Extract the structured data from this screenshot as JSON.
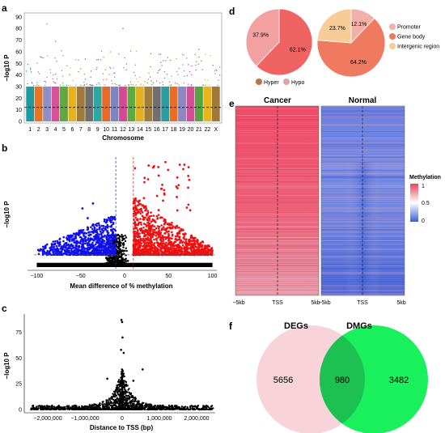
{
  "chart_data": [
    {
      "panel": "a",
      "type": "scatter",
      "subtype": "manhattan",
      "xlabel": "Chromosome",
      "ylabel": "−log10 P",
      "categories": [
        "1",
        "2",
        "3",
        "4",
        "5",
        "6",
        "7",
        "8",
        "9",
        "10",
        "11",
        "12",
        "13",
        "14",
        "15",
        "16",
        "17",
        "18",
        "19",
        "20",
        "21",
        "22",
        "X"
      ],
      "series_colors": [
        "#1f9ba0",
        "#e97424",
        "#8e8fc4",
        "#d6509a",
        "#61a845",
        "#e8b21a",
        "#a27a3c",
        "#6f6f6f",
        "#2ea6a1",
        "#e86a26",
        "#7f83be",
        "#d34a93",
        "#5caa41",
        "#e5b020",
        "#a37c38",
        "#707070",
        "#2a9da4",
        "#e96e24",
        "#8a87c2",
        "#d54c97",
        "#52a53f",
        "#e9b41e",
        "#9e793a"
      ],
      "ytick_labels": [
        "0",
        "10",
        "20",
        "30",
        "40",
        "50",
        "60",
        "70",
        "80",
        "90"
      ],
      "ylim": [
        0,
        92
      ],
      "threshold": 12
    },
    {
      "panel": "b",
      "type": "scatter",
      "subtype": "volcano",
      "xlabel": "Mean difference of % methylation",
      "ylabel": "−log10 P",
      "xtick_labels": [
        "−100",
        "−50",
        "0",
        "50",
        "100"
      ],
      "xticks": [
        -100,
        -50,
        0,
        50,
        100
      ],
      "xlim": [
        -105,
        105
      ],
      "threshold": 10,
      "vlines": [
        -10,
        10
      ],
      "series_colors": {
        "hypo": "#1010ee",
        "hyper": "#ee1010",
        "ns": "#000000"
      }
    },
    {
      "panel": "c",
      "type": "scatter",
      "xlabel": "Distance to TSS (bp)",
      "ylabel": "−log10 P",
      "xtick_labels": [
        "−2,000,000",
        "−1,000,000",
        "0",
        "1,000,000",
        "2,000,000"
      ],
      "xticks": [
        -2000000,
        -1000000,
        0,
        1000000,
        2000000
      ],
      "ytick_labels": [
        "0",
        "25",
        "50",
        "75"
      ],
      "yticks": [
        0,
        25,
        50,
        75
      ],
      "xlim": [
        -2500000,
        2500000
      ],
      "ylim": [
        -3,
        92
      ]
    },
    {
      "panel": "d",
      "type": "pie",
      "charts": [
        {
          "slices": [
            {
              "name": "Hyper",
              "value": 62.1,
              "label": "62.1%",
              "color": "#ef6363"
            },
            {
              "name": "Hypo",
              "value": 37.9,
              "label": "37.9%",
              "color": "#f2a0a0"
            }
          ],
          "legend": [
            "Hyper",
            "Hypo"
          ]
        },
        {
          "slices": [
            {
              "name": "Promoter",
              "value": 12.1,
              "label": "12.1%",
              "color": "#f3b0a8"
            },
            {
              "name": "Gene body",
              "value": 64.2,
              "label": "64.2%",
              "color": "#ef7a60"
            },
            {
              "name": "Intergenic region",
              "value": 23.7,
              "label": "23.7%",
              "color": "#f7cc96"
            }
          ],
          "legend": [
            "Promoter",
            "Gene body",
            "Intergenic region"
          ]
        }
      ]
    },
    {
      "panel": "e",
      "type": "heatmap",
      "columns": [
        "Cancer",
        "Normal"
      ],
      "xtick_labels": [
        "−5kb",
        "TSS",
        "5kb"
      ],
      "legend_title": "Methylation",
      "legend_ticks": [
        "1",
        "0.5",
        "0"
      ],
      "scale": [
        0,
        1
      ],
      "colors": {
        "low": "#3a5fd8",
        "mid": "#ffffff",
        "high": "#e8425a"
      }
    },
    {
      "panel": "f",
      "type": "venn",
      "sets": [
        {
          "name": "DEGs",
          "only": "5656",
          "color": "#f8d3da"
        },
        {
          "name": "DMGs",
          "only": "3482",
          "color": "#19f05c"
        }
      ],
      "intersection": "980"
    }
  ]
}
